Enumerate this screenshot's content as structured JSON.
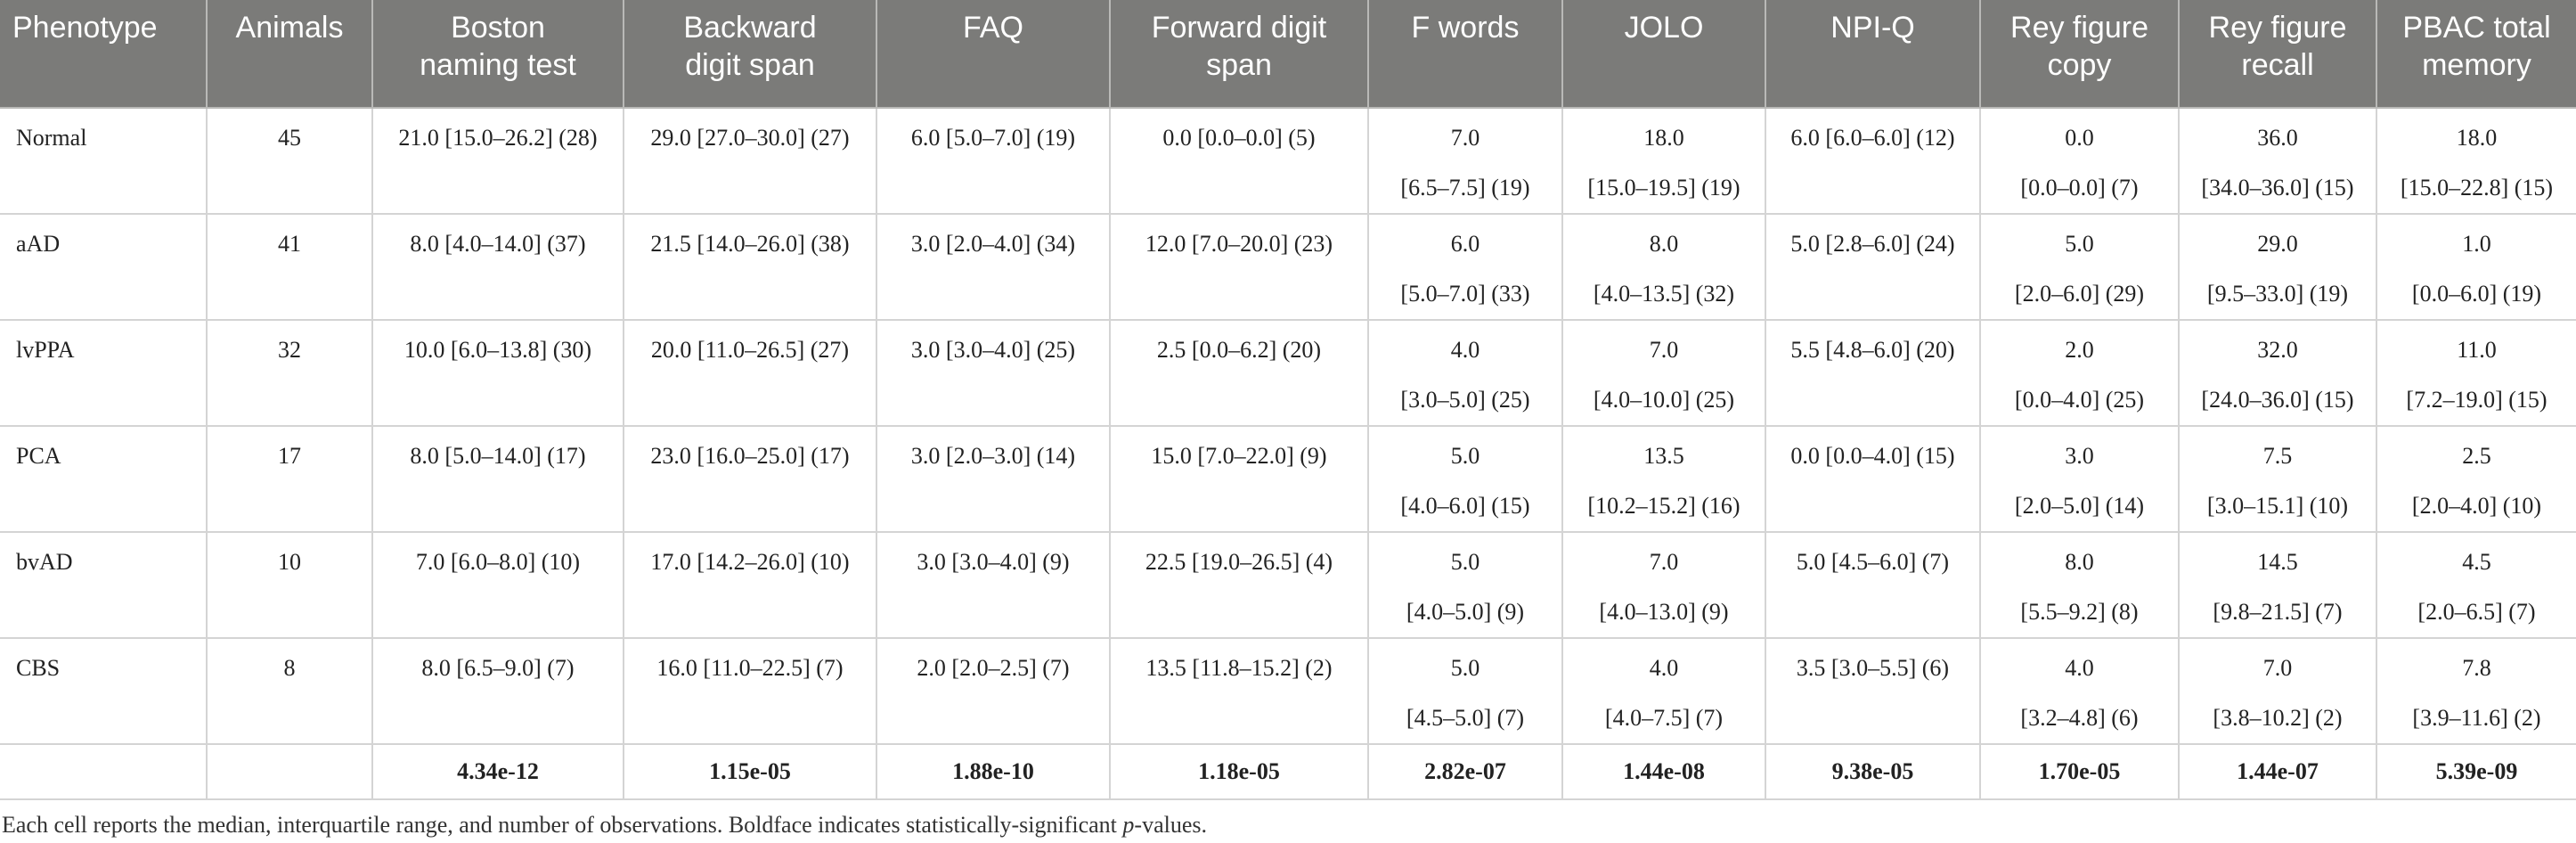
{
  "table": {
    "headers": [
      [
        "Phenotype"
      ],
      [
        "Animals"
      ],
      [
        "Boston",
        "naming test"
      ],
      [
        "Backward",
        "digit span"
      ],
      [
        "FAQ"
      ],
      [
        "Forward digit",
        "span"
      ],
      [
        "F words"
      ],
      [
        "JOLO"
      ],
      [
        "NPI-Q"
      ],
      [
        "Rey figure",
        "copy"
      ],
      [
        "Rey figure",
        "recall"
      ],
      [
        "PBAC total",
        "memory"
      ]
    ],
    "rows": [
      {
        "cells": [
          [
            "Normal"
          ],
          [
            "45"
          ],
          [
            "21.0 [15.0–26.2] (28)"
          ],
          [
            "29.0 [27.0–30.0] (27)"
          ],
          [
            "6.0 [5.0–7.0] (19)"
          ],
          [
            "0.0 [0.0–0.0] (5)"
          ],
          [
            "7.0",
            "[6.5–7.5] (19)"
          ],
          [
            "18.0",
            "[15.0–19.5] (19)"
          ],
          [
            "6.0 [6.0–6.0] (12)"
          ],
          [
            "0.0",
            "[0.0–0.0] (7)"
          ],
          [
            "36.0",
            "[34.0–36.0] (15)"
          ],
          [
            "18.0",
            "[15.0–22.8] (15)"
          ]
        ]
      },
      {
        "cells": [
          [
            "aAD"
          ],
          [
            "41"
          ],
          [
            "8.0 [4.0–14.0] (37)"
          ],
          [
            "21.5 [14.0–26.0] (38)"
          ],
          [
            "3.0 [2.0–4.0] (34)"
          ],
          [
            "12.0 [7.0–20.0] (23)"
          ],
          [
            "6.0",
            "[5.0–7.0] (33)"
          ],
          [
            "8.0",
            "[4.0–13.5] (32)"
          ],
          [
            "5.0 [2.8–6.0] (24)"
          ],
          [
            "5.0",
            "[2.0–6.0] (29)"
          ],
          [
            "29.0",
            "[9.5–33.0] (19)"
          ],
          [
            "1.0",
            "[0.0–6.0] (19)"
          ]
        ]
      },
      {
        "cells": [
          [
            "lvPPA"
          ],
          [
            "32"
          ],
          [
            "10.0 [6.0–13.8] (30)"
          ],
          [
            "20.0 [11.0–26.5] (27)"
          ],
          [
            "3.0 [3.0–4.0] (25)"
          ],
          [
            "2.5 [0.0–6.2] (20)"
          ],
          [
            "4.0",
            "[3.0–5.0] (25)"
          ],
          [
            "7.0",
            "[4.0–10.0] (25)"
          ],
          [
            "5.5 [4.8–6.0] (20)"
          ],
          [
            "2.0",
            "[0.0–4.0] (25)"
          ],
          [
            "32.0",
            "[24.0–36.0] (15)"
          ],
          [
            "11.0",
            "[7.2–19.0] (15)"
          ]
        ]
      },
      {
        "cells": [
          [
            "PCA"
          ],
          [
            "17"
          ],
          [
            "8.0 [5.0–14.0] (17)"
          ],
          [
            "23.0 [16.0–25.0] (17)"
          ],
          [
            "3.0 [2.0–3.0] (14)"
          ],
          [
            "15.0 [7.0–22.0] (9)"
          ],
          [
            "5.0",
            "[4.0–6.0] (15)"
          ],
          [
            "13.5",
            "[10.2–15.2] (16)"
          ],
          [
            "0.0 [0.0–4.0] (15)"
          ],
          [
            "3.0",
            "[2.0–5.0] (14)"
          ],
          [
            "7.5",
            "[3.0–15.1] (10)"
          ],
          [
            "2.5",
            "[2.0–4.0] (10)"
          ]
        ]
      },
      {
        "cells": [
          [
            "bvAD"
          ],
          [
            "10"
          ],
          [
            "7.0 [6.0–8.0] (10)"
          ],
          [
            "17.0 [14.2–26.0] (10)"
          ],
          [
            "3.0 [3.0–4.0] (9)"
          ],
          [
            "22.5 [19.0–26.5] (4)"
          ],
          [
            "5.0",
            "[4.0–5.0] (9)"
          ],
          [
            "7.0",
            "[4.0–13.0] (9)"
          ],
          [
            "5.0 [4.5–6.0] (7)"
          ],
          [
            "8.0",
            "[5.5–9.2] (8)"
          ],
          [
            "14.5",
            "[9.8–21.5] (7)"
          ],
          [
            "4.5",
            "[2.0–6.5] (7)"
          ]
        ]
      },
      {
        "cells": [
          [
            "CBS"
          ],
          [
            "8"
          ],
          [
            "8.0 [6.5–9.0] (7)"
          ],
          [
            "16.0 [11.0–22.5] (7)"
          ],
          [
            "2.0 [2.0–2.5] (7)"
          ],
          [
            "13.5 [11.8–15.2] (2)"
          ],
          [
            "5.0",
            "[4.5–5.0] (7)"
          ],
          [
            "4.0",
            "[4.0–7.5] (7)"
          ],
          [
            "3.5 [3.0–5.5] (6)"
          ],
          [
            "4.0",
            "[3.2–4.8] (6)"
          ],
          [
            "7.0",
            "[3.8–10.2] (2)"
          ],
          [
            "7.8",
            "[3.9–11.6] (2)"
          ]
        ]
      }
    ],
    "pvalues": [
      "",
      "",
      "4.34e-12",
      "1.15e-05",
      "1.88e-10",
      "1.18e-05",
      "2.82e-07",
      "1.44e-08",
      "9.38e-05",
      "1.70e-05",
      "1.44e-07",
      "5.39e-09"
    ]
  },
  "caption": {
    "before": "Each cell reports the median, interquartile range, and number of observations. Boldface indicates statistically-significant ",
    "italic": "p",
    "after": "-values."
  }
}
